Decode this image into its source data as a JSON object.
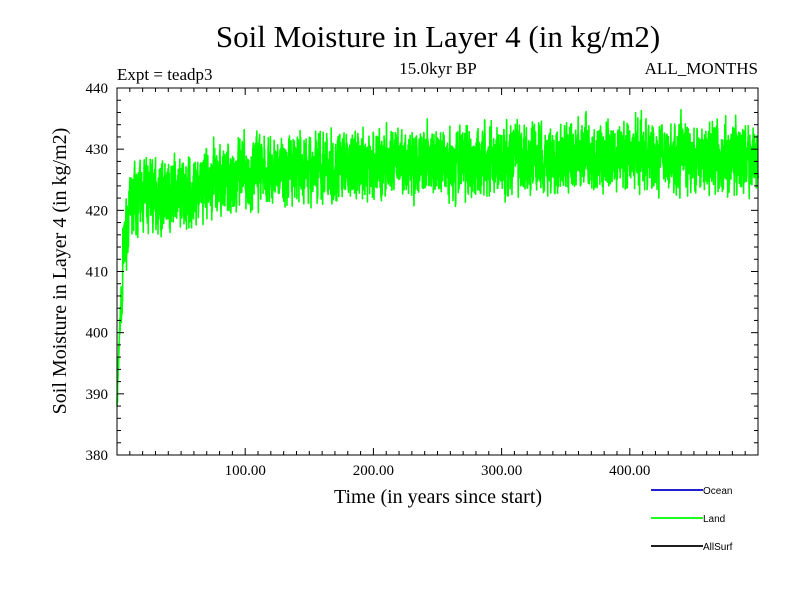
{
  "chart_data": {
    "type": "line",
    "title": "Soil Moisture in Layer 4 (in kg/m2)",
    "subtitle": "15.0kyr BP",
    "experiment": "Expt = teadp3",
    "period": "ALL_MONTHS",
    "xlabel": "Time (in years since start)",
    "ylabel": "Soil Moisture in Layer 4 (in kg/m2)",
    "xlim": [
      0,
      500
    ],
    "ylim": [
      380,
      440
    ],
    "x_ticks": [
      100,
      200,
      300,
      400
    ],
    "x_tick_labels": [
      "100.00",
      "200.00",
      "300.00",
      "400.00"
    ],
    "y_ticks": [
      380,
      390,
      400,
      410,
      420,
      430,
      440
    ],
    "y_tick_labels": [
      "380",
      "390",
      "400",
      "410",
      "420",
      "430",
      "440"
    ],
    "grid": false,
    "legend_position": "bottom-right",
    "series": [
      {
        "name": "Ocean",
        "color": "#0000cc",
        "values": []
      },
      {
        "name": "Land",
        "color": "#00ff00",
        "sampling": "monthly values, trend (year, kg/m2) with fluctuation amplitude",
        "trend_x": [
          0,
          2,
          5,
          8,
          12,
          20,
          30,
          50,
          70,
          100,
          150,
          200,
          250,
          300,
          350,
          400,
          450,
          500
        ],
        "trend_y": [
          388,
          400,
          412,
          418,
          421,
          422.5,
          422.8,
          422.5,
          424,
          426,
          427,
          427.5,
          428,
          428.2,
          428.5,
          429,
          429,
          428
        ],
        "amplitude": 4.5,
        "range_min": 388,
        "range_max": 437.5
      },
      {
        "name": "AllSurf",
        "color": "#000000",
        "values": []
      }
    ]
  }
}
